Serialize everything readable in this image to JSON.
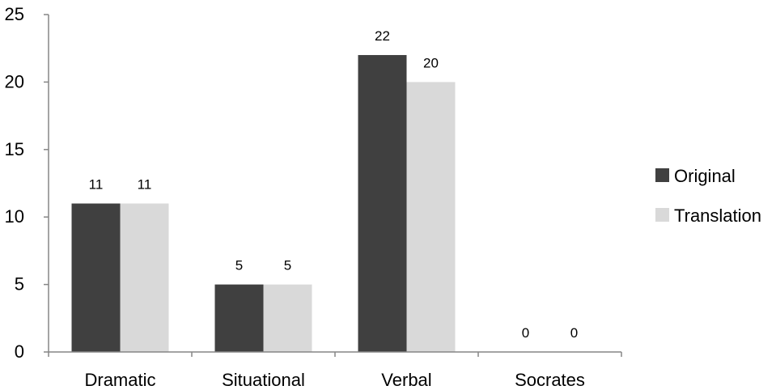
{
  "chart_data": {
    "type": "bar",
    "title": "",
    "xlabel": "",
    "ylabel": "",
    "categories": [
      "Dramatic",
      "Situational",
      "Verbal",
      "Socrates"
    ],
    "series": [
      {
        "name": "Original",
        "values": [
          11,
          5,
          22,
          0
        ],
        "color": "#404040"
      },
      {
        "name": "Translation",
        "values": [
          11,
          5,
          20,
          0
        ],
        "color": "#d9d9d9"
      }
    ],
    "ylim": [
      0,
      25
    ],
    "yticks": [
      0,
      5,
      10,
      15,
      20,
      25
    ],
    "grid": false,
    "data_labels": true,
    "legend_position": "right",
    "axis_color": "#868686"
  }
}
